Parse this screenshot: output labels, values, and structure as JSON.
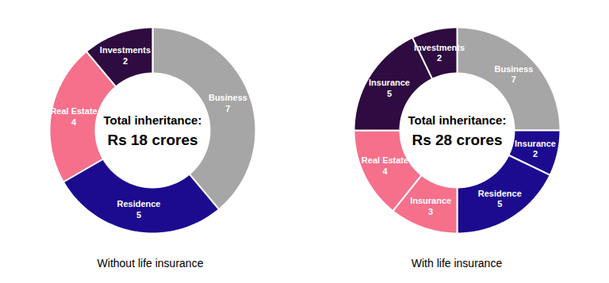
{
  "chart_data": [
    {
      "type": "pie",
      "title": "Without life insurance",
      "center_text": [
        "Total inheritance:",
        "Rs 18 crores"
      ],
      "categories": [
        "Business",
        "Residence",
        "Real Estate",
        "Investments"
      ],
      "values": [
        7,
        5,
        4,
        2
      ],
      "colors": [
        "#a6a6a6",
        "#1c0b8f",
        "#f6708b",
        "#2e0b40"
      ],
      "data_labels": true
    },
    {
      "type": "pie",
      "title": "With life insurance",
      "center_text": [
        "Total inheritance:",
        "Rs 28 crores"
      ],
      "categories": [
        "Business",
        "Insurance",
        "Residence",
        "Insurance",
        "Real Estate",
        "Insurance",
        "Investments"
      ],
      "values": [
        7,
        2,
        5,
        3,
        4,
        5,
        2
      ],
      "colors": [
        "#a6a6a6",
        "#1c0b8f",
        "#1c0b8f",
        "#f6708b",
        "#f6708b",
        "#2e0b40",
        "#2e0b40"
      ],
      "data_labels": true
    }
  ]
}
